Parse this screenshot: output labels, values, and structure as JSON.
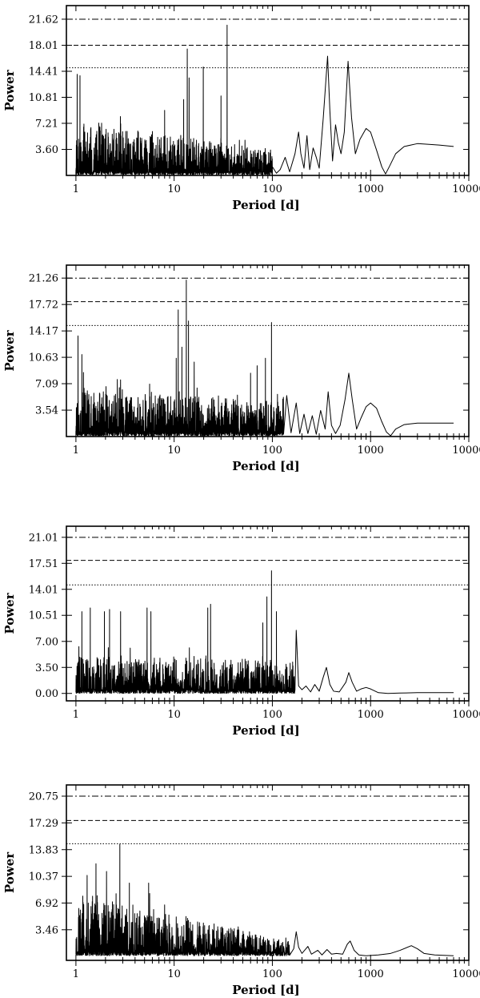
{
  "chart_data": [
    {
      "type": "line",
      "xlabel": "Period [d]",
      "ylabel": "Power",
      "xscale": "log",
      "xlim": [
        0.8,
        10000
      ],
      "ylim": [
        0,
        23.5
      ],
      "xticks": [
        1,
        10,
        100,
        1000,
        10000
      ],
      "xtick_labels": [
        "1",
        "10",
        "100",
        "1000",
        "10000"
      ],
      "yticks": [
        3.6,
        7.21,
        10.81,
        14.41,
        18.01,
        21.62
      ],
      "ytick_labels": [
        "3.60",
        "7.21",
        "10.81",
        "14.41",
        "18.01",
        "21.62"
      ],
      "thresholds": [
        {
          "value": 21.62,
          "style": "dashdot"
        },
        {
          "value": 18.01,
          "style": "dashed"
        },
        {
          "value": 14.9,
          "style": "dotted"
        }
      ],
      "series": [
        {
          "noise": {
            "xmin": 1.0,
            "xmax": 100,
            "base": 0.1,
            "amp": [
              7.0,
              3.5
            ],
            "seed": 11
          },
          "peaks": [
            [
              1.03,
              14.0
            ],
            [
              1.1,
              13.8
            ],
            [
              13.6,
              17.5
            ],
            [
              14.2,
              13.5
            ],
            [
              19.8,
              15.0
            ],
            [
              34.6,
              20.8
            ],
            [
              12.5,
              10.5
            ],
            [
              8.0,
              9.0
            ],
            [
              30.0,
              11.0
            ]
          ],
          "curve": [
            [
              100,
              1.2
            ],
            [
              110,
              0.3
            ],
            [
              120,
              0.8
            ],
            [
              135,
              2.5
            ],
            [
              150,
              0.5
            ],
            [
              170,
              3.0
            ],
            [
              185,
              6.0
            ],
            [
              195,
              3.0
            ],
            [
              210,
              1.0
            ],
            [
              225,
              5.5
            ],
            [
              240,
              0.8
            ],
            [
              260,
              3.8
            ],
            [
              280,
              2.5
            ],
            [
              300,
              1.0
            ],
            [
              330,
              8.0
            ],
            [
              365,
              16.5
            ],
            [
              385,
              9.0
            ],
            [
              410,
              2.0
            ],
            [
              440,
              7.0
            ],
            [
              470,
              4.5
            ],
            [
              500,
              3.0
            ],
            [
              540,
              6.0
            ],
            [
              590,
              15.8
            ],
            [
              640,
              8.0
            ],
            [
              700,
              3.0
            ],
            [
              780,
              5.0
            ],
            [
              900,
              6.5
            ],
            [
              1000,
              6.0
            ],
            [
              1150,
              3.5
            ],
            [
              1300,
              1.2
            ],
            [
              1420,
              0.2
            ],
            [
              1550,
              1.2
            ],
            [
              1800,
              3.0
            ],
            [
              2200,
              4.0
            ],
            [
              3000,
              4.4
            ],
            [
              5000,
              4.2
            ],
            [
              7000,
              4.0
            ]
          ]
        }
      ]
    },
    {
      "type": "line",
      "xlabel": "Period [d]",
      "ylabel": "Power",
      "xscale": "log",
      "xlim": [
        0.8,
        10000
      ],
      "ylim": [
        0,
        23.0
      ],
      "xticks": [
        1,
        10,
        100,
        1000,
        10000
      ],
      "xtick_labels": [
        "1",
        "10",
        "100",
        "1000",
        "10000"
      ],
      "yticks": [
        3.54,
        7.09,
        10.63,
        14.17,
        17.72,
        21.26
      ],
      "ytick_labels": [
        "3.54",
        "7.09",
        "10.63",
        "14.17",
        "17.72",
        "21.26"
      ],
      "thresholds": [
        {
          "value": 21.26,
          "style": "dashdot"
        },
        {
          "value": 18.1,
          "style": "dashed"
        },
        {
          "value": 14.9,
          "style": "dotted"
        }
      ],
      "series": [
        {
          "noise": {
            "xmin": 1.0,
            "xmax": 130,
            "base": 0.1,
            "amp": [
              6.5,
              4.5
            ],
            "seed": 23
          },
          "peaks": [
            [
              1.05,
              13.5
            ],
            [
              1.15,
              11.0
            ],
            [
              11.0,
              17.0
            ],
            [
              12.0,
              12.0
            ],
            [
              13.3,
              21.0
            ],
            [
              14.0,
              15.5
            ],
            [
              10.5,
              10.5
            ],
            [
              16.0,
              10.0
            ],
            [
              98.0,
              15.3
            ],
            [
              85.0,
              10.5
            ],
            [
              70.0,
              9.5
            ],
            [
              60.0,
              8.5
            ]
          ],
          "curve": [
            [
              130,
              1.0
            ],
            [
              140,
              5.5
            ],
            [
              155,
              0.5
            ],
            [
              175,
              4.5
            ],
            [
              190,
              0.4
            ],
            [
              210,
              3.0
            ],
            [
              230,
              0.4
            ],
            [
              255,
              2.8
            ],
            [
              280,
              0.3
            ],
            [
              310,
              3.5
            ],
            [
              345,
              1.0
            ],
            [
              370,
              6.0
            ],
            [
              400,
              1.5
            ],
            [
              440,
              0.4
            ],
            [
              490,
              1.5
            ],
            [
              550,
              5.0
            ],
            [
              600,
              8.5
            ],
            [
              650,
              5.0
            ],
            [
              720,
              1.0
            ],
            [
              800,
              2.5
            ],
            [
              900,
              4.0
            ],
            [
              1000,
              4.5
            ],
            [
              1150,
              3.8
            ],
            [
              1300,
              2.0
            ],
            [
              1450,
              0.6
            ],
            [
              1600,
              0.1
            ],
            [
              1800,
              1.0
            ],
            [
              2200,
              1.6
            ],
            [
              3000,
              1.8
            ],
            [
              5000,
              1.8
            ],
            [
              7000,
              1.8
            ]
          ]
        }
      ]
    },
    {
      "type": "line",
      "xlabel": "Period [d]",
      "ylabel": "Power",
      "xscale": "log",
      "xlim": [
        0.8,
        10000
      ],
      "ylim": [
        -1.0,
        22.5
      ],
      "xticks": [
        1,
        10,
        100,
        1000,
        10000
      ],
      "xtick_labels": [
        "1",
        "10",
        "100",
        "1000",
        "10000"
      ],
      "yticks": [
        0.0,
        3.5,
        7.0,
        10.51,
        14.01,
        17.51,
        21.01
      ],
      "ytick_labels": [
        "0.00",
        "3.50",
        "7.00",
        "10.51",
        "14.01",
        "17.51",
        "21.01"
      ],
      "thresholds": [
        {
          "value": 21.01,
          "style": "dashdot"
        },
        {
          "value": 17.9,
          "style": "dashed"
        },
        {
          "value": 14.6,
          "style": "dotted"
        }
      ],
      "series": [
        {
          "noise": {
            "xmin": 1.0,
            "xmax": 170,
            "base": 0.0,
            "amp": [
              5.0,
              4.5
            ],
            "seed": 37
          },
          "peaks": [
            [
              1.15,
              11.0
            ],
            [
              1.4,
              11.5
            ],
            [
              1.95,
              11.0
            ],
            [
              2.2,
              11.3
            ],
            [
              2.85,
              11.0
            ],
            [
              5.3,
              11.5
            ],
            [
              5.8,
              11.0
            ],
            [
              22.0,
              11.5
            ],
            [
              23.5,
              12.0
            ],
            [
              88.0,
              13.0
            ],
            [
              98.0,
              16.5
            ],
            [
              110.0,
              11.0
            ],
            [
              80.0,
              9.5
            ]
          ],
          "curve": [
            [
              170,
              1.0
            ],
            [
              175,
              8.5
            ],
            [
              185,
              1.0
            ],
            [
              200,
              0.5
            ],
            [
              220,
              1.0
            ],
            [
              245,
              0.2
            ],
            [
              270,
              1.2
            ],
            [
              300,
              0.3
            ],
            [
              330,
              2.2
            ],
            [
              355,
              3.5
            ],
            [
              385,
              1.2
            ],
            [
              420,
              0.3
            ],
            [
              480,
              0.2
            ],
            [
              560,
              1.5
            ],
            [
              600,
              2.8
            ],
            [
              650,
              1.5
            ],
            [
              720,
              0.3
            ],
            [
              800,
              0.6
            ],
            [
              900,
              0.8
            ],
            [
              1000,
              0.6
            ],
            [
              1200,
              0.1
            ],
            [
              1500,
              0.0
            ],
            [
              2000,
              0.05
            ],
            [
              3000,
              0.1
            ],
            [
              5000,
              0.1
            ],
            [
              7000,
              0.1
            ]
          ]
        }
      ]
    },
    {
      "type": "line",
      "xlabel": "Period [d]",
      "ylabel": "Power",
      "xscale": "log",
      "xlim": [
        0.8,
        10000
      ],
      "ylim": [
        -0.5,
        22.2
      ],
      "xticks": [
        1,
        10,
        100,
        1000,
        10000
      ],
      "xtick_labels": [
        "1",
        "10",
        "100",
        "1000",
        "10000"
      ],
      "yticks": [
        3.46,
        6.92,
        10.37,
        13.83,
        17.29,
        20.75
      ],
      "ytick_labels": [
        "3.46",
        "6.92",
        "10.37",
        "13.83",
        "17.29",
        "20.75"
      ],
      "thresholds": [
        {
          "value": 20.75,
          "style": "dashdot"
        },
        {
          "value": 17.6,
          "style": "dashed"
        },
        {
          "value": 14.6,
          "style": "dotted"
        }
      ],
      "series": [
        {
          "noise": {
            "xmin": 1.0,
            "xmax": 150,
            "base": 0.1,
            "amp": [
              8.0,
              2.0
            ],
            "seed": 53
          },
          "peaks": [
            [
              1.6,
              12.0
            ],
            [
              2.05,
              11.0
            ],
            [
              2.8,
              14.5
            ],
            [
              1.3,
              10.5
            ],
            [
              3.5,
              9.5
            ],
            [
              5.5,
              9.5
            ]
          ],
          "curve": [
            [
              150,
              0.3
            ],
            [
              165,
              1.0
            ],
            [
              175,
              3.2
            ],
            [
              185,
              1.2
            ],
            [
              200,
              0.4
            ],
            [
              230,
              1.3
            ],
            [
              250,
              0.3
            ],
            [
              290,
              0.8
            ],
            [
              320,
              0.2
            ],
            [
              360,
              0.9
            ],
            [
              400,
              0.3
            ],
            [
              450,
              0.4
            ],
            [
              520,
              0.3
            ],
            [
              580,
              1.6
            ],
            [
              620,
              2.0
            ],
            [
              680,
              0.8
            ],
            [
              760,
              0.2
            ],
            [
              900,
              0.1
            ],
            [
              1200,
              0.2
            ],
            [
              1600,
              0.4
            ],
            [
              2000,
              0.8
            ],
            [
              2600,
              1.4
            ],
            [
              3000,
              1.0
            ],
            [
              3500,
              0.4
            ],
            [
              4500,
              0.2
            ],
            [
              7000,
              0.1
            ]
          ]
        }
      ]
    }
  ]
}
